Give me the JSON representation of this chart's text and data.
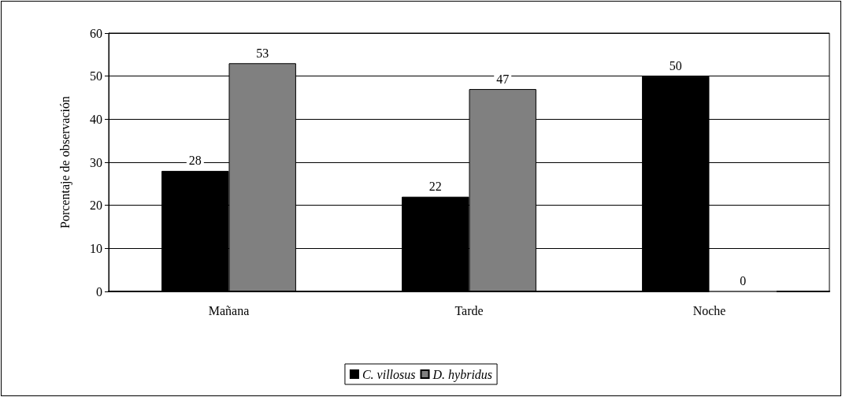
{
  "chart_data": {
    "type": "bar",
    "ylabel": "Porcentaje de observación",
    "categories": [
      "Mañana",
      "Tarde",
      "Noche"
    ],
    "series": [
      {
        "name": "C. villosus",
        "color": "#000000",
        "values": [
          28,
          22,
          50
        ]
      },
      {
        "name": "D. hybridus",
        "color": "#808080",
        "values": [
          53,
          47,
          0
        ]
      }
    ],
    "ylim": [
      0,
      60
    ],
    "yticks": [
      0,
      10,
      20,
      30,
      40,
      50,
      60
    ],
    "grid": "y",
    "legend": "bottom",
    "data_labels": true
  }
}
